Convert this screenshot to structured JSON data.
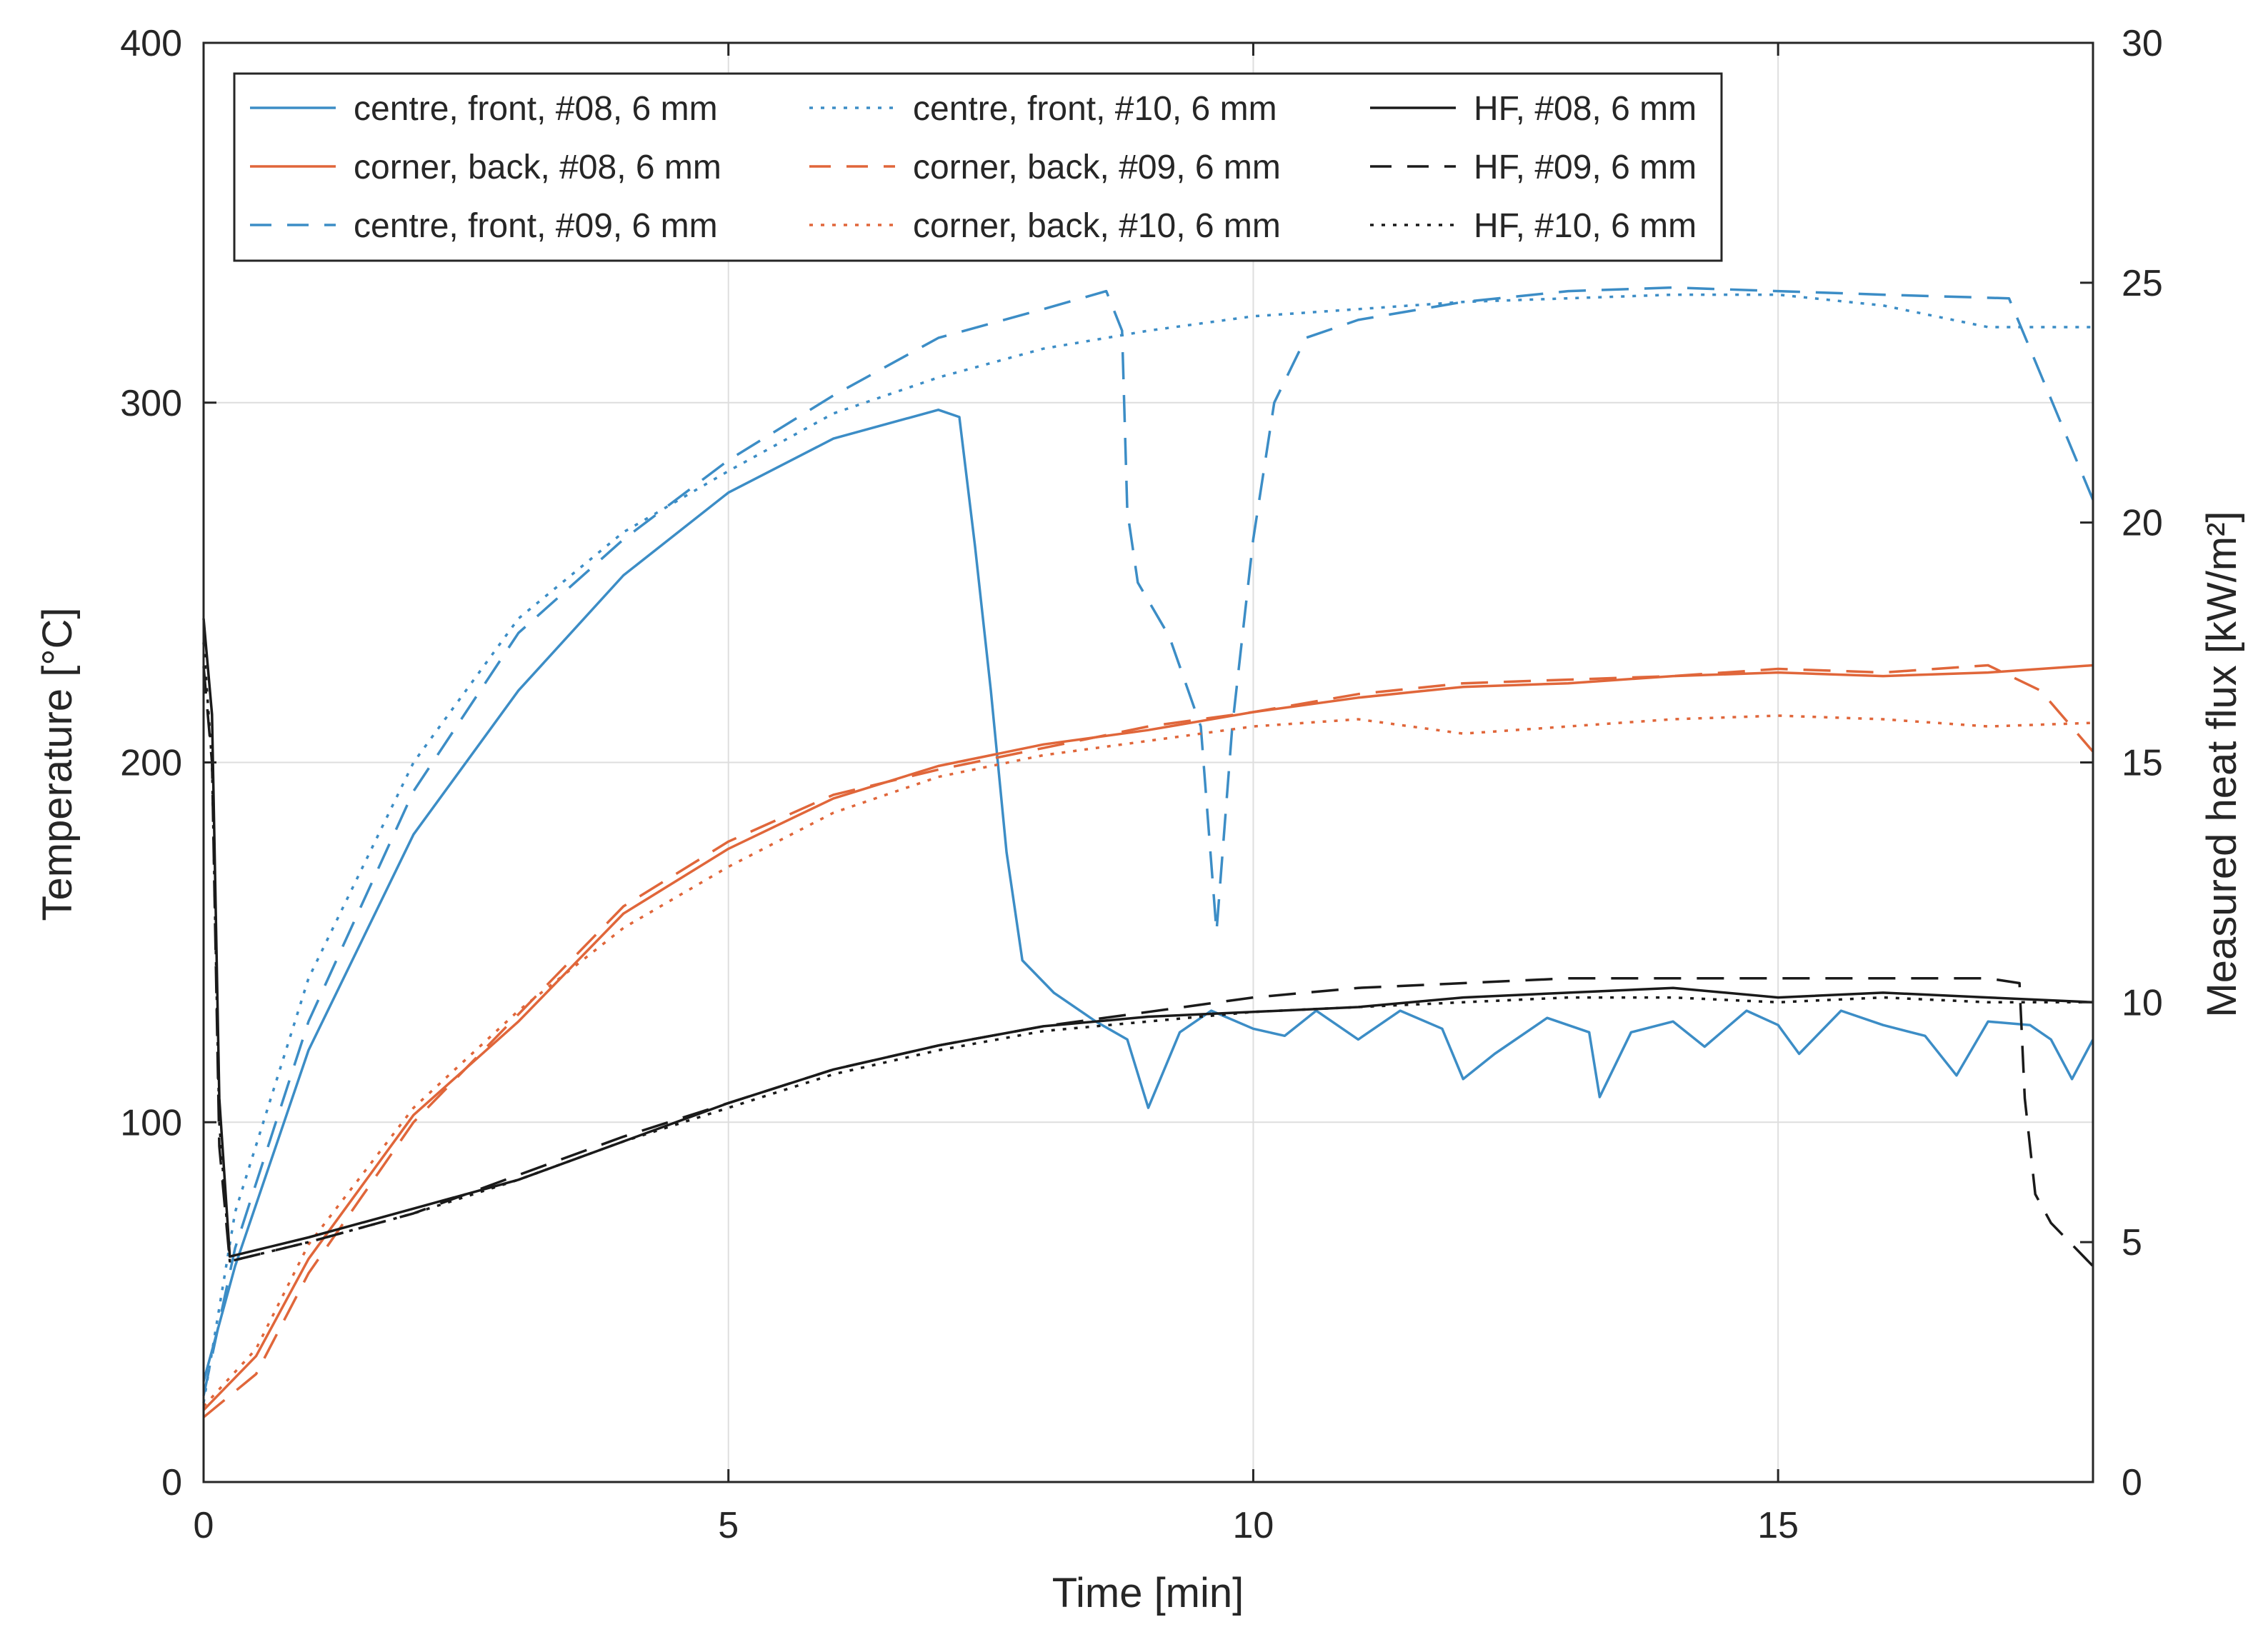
{
  "chart_data": {
    "type": "line",
    "title": "",
    "xlabel": "Time [min]",
    "ylabel_left": "Temperature [°C]",
    "ylabel_right": "Measured heat flux [kW/m²]",
    "xlim": [
      0,
      18
    ],
    "ylim_left": [
      0,
      400
    ],
    "ylim_right": [
      0,
      30
    ],
    "grid": true,
    "legend_position": "top-left (3 columns)",
    "xticks": [
      0,
      5,
      10,
      15
    ],
    "yticks_left": [
      0,
      100,
      200,
      300,
      400
    ],
    "yticks_right": [
      0,
      5,
      10,
      15,
      20,
      25,
      30
    ],
    "colors": {
      "blue": "#3c8dc6",
      "orange": "#e0663a",
      "black": "#1a1a1a",
      "grid": "#dedede",
      "axis": "#262626"
    },
    "series": [
      {
        "name": "centre, front, #08, 6 mm",
        "axis": "left",
        "color": "blue",
        "dash": "solid",
        "points": [
          [
            0,
            28
          ],
          [
            0.3,
            60
          ],
          [
            1,
            120
          ],
          [
            2,
            180
          ],
          [
            3,
            220
          ],
          [
            4,
            252
          ],
          [
            5,
            275
          ],
          [
            6,
            290
          ],
          [
            7,
            298
          ],
          [
            7.2,
            296
          ],
          [
            7.35,
            260
          ],
          [
            7.5,
            220
          ],
          [
            7.65,
            175
          ],
          [
            7.8,
            145
          ],
          [
            8.1,
            136
          ],
          [
            8.5,
            128
          ],
          [
            8.8,
            123
          ],
          [
            9,
            104
          ],
          [
            9.3,
            125
          ],
          [
            9.6,
            131
          ],
          [
            10,
            126
          ],
          [
            10.3,
            124
          ],
          [
            10.6,
            131
          ],
          [
            11,
            123
          ],
          [
            11.4,
            131
          ],
          [
            11.8,
            126
          ],
          [
            12,
            112
          ],
          [
            12.3,
            119
          ],
          [
            12.8,
            129
          ],
          [
            13.2,
            125
          ],
          [
            13.3,
            107
          ],
          [
            13.6,
            125
          ],
          [
            14,
            128
          ],
          [
            14.3,
            121
          ],
          [
            14.7,
            131
          ],
          [
            15,
            127
          ],
          [
            15.2,
            119
          ],
          [
            15.6,
            131
          ],
          [
            16,
            127
          ],
          [
            16.4,
            124
          ],
          [
            16.7,
            113
          ],
          [
            17,
            128
          ],
          [
            17.4,
            127
          ],
          [
            17.6,
            123
          ],
          [
            17.8,
            112
          ],
          [
            18,
            123
          ]
        ]
      },
      {
        "name": "corner, back, #08, 6 mm",
        "axis": "left",
        "color": "orange",
        "dash": "solid",
        "points": [
          [
            0,
            20
          ],
          [
            0.5,
            35
          ],
          [
            1,
            62
          ],
          [
            2,
            102
          ],
          [
            3,
            128
          ],
          [
            4,
            158
          ],
          [
            5,
            176
          ],
          [
            6,
            190
          ],
          [
            7,
            199
          ],
          [
            8,
            205
          ],
          [
            9,
            209
          ],
          [
            10,
            214
          ],
          [
            11,
            218
          ],
          [
            12,
            221
          ],
          [
            13,
            222
          ],
          [
            14,
            224
          ],
          [
            15,
            225
          ],
          [
            16,
            224
          ],
          [
            17,
            225
          ],
          [
            18,
            227
          ]
        ]
      },
      {
        "name": "centre, front, #09, 6 mm",
        "axis": "left",
        "color": "blue",
        "dash": "dashed",
        "points": [
          [
            0,
            24
          ],
          [
            0.3,
            65
          ],
          [
            1,
            128
          ],
          [
            2,
            192
          ],
          [
            3,
            236
          ],
          [
            4,
            262
          ],
          [
            5,
            284
          ],
          [
            6,
            302
          ],
          [
            7,
            318
          ],
          [
            8,
            326
          ],
          [
            8.6,
            331
          ],
          [
            8.75,
            320
          ],
          [
            8.8,
            270
          ],
          [
            8.9,
            250
          ],
          [
            9.2,
            235
          ],
          [
            9.5,
            210
          ],
          [
            9.65,
            153
          ],
          [
            9.8,
            210
          ],
          [
            10,
            262
          ],
          [
            10.2,
            300
          ],
          [
            10.5,
            318
          ],
          [
            11,
            323
          ],
          [
            12,
            328
          ],
          [
            13,
            331
          ],
          [
            14,
            332
          ],
          [
            15,
            331
          ],
          [
            16,
            330
          ],
          [
            17.2,
            329
          ],
          [
            17.4,
            315
          ],
          [
            18,
            273
          ]
        ]
      },
      {
        "name": "centre, front, #10, 6 mm",
        "axis": "left",
        "color": "blue",
        "dash": "dotted",
        "points": [
          [
            0,
            22
          ],
          [
            0.3,
            75
          ],
          [
            1,
            140
          ],
          [
            2,
            200
          ],
          [
            3,
            240
          ],
          [
            4,
            264
          ],
          [
            5,
            281
          ],
          [
            6,
            297
          ],
          [
            7,
            307
          ],
          [
            8,
            315
          ],
          [
            9,
            320
          ],
          [
            10,
            324
          ],
          [
            11,
            326
          ],
          [
            12,
            328
          ],
          [
            13,
            329
          ],
          [
            14,
            330
          ],
          [
            15,
            330
          ],
          [
            16,
            327
          ],
          [
            17,
            321
          ],
          [
            18,
            321
          ]
        ]
      },
      {
        "name": "corner, back, #09, 6 mm",
        "axis": "left",
        "color": "orange",
        "dash": "dashed",
        "points": [
          [
            0,
            18
          ],
          [
            0.5,
            30
          ],
          [
            1,
            58
          ],
          [
            2,
            100
          ],
          [
            3,
            130
          ],
          [
            4,
            160
          ],
          [
            5,
            178
          ],
          [
            6,
            191
          ],
          [
            7,
            198
          ],
          [
            8,
            204
          ],
          [
            9,
            210
          ],
          [
            10,
            214
          ],
          [
            11,
            219
          ],
          [
            12,
            222
          ],
          [
            13,
            223
          ],
          [
            14,
            224
          ],
          [
            15,
            226
          ],
          [
            16,
            225
          ],
          [
            17,
            227
          ],
          [
            17.5,
            220
          ],
          [
            18,
            203
          ]
        ]
      },
      {
        "name": "corner, back, #10, 6 mm",
        "axis": "left",
        "color": "orange",
        "dash": "dotted",
        "points": [
          [
            0,
            21
          ],
          [
            0.5,
            37
          ],
          [
            1,
            66
          ],
          [
            2,
            104
          ],
          [
            3,
            131
          ],
          [
            4,
            154
          ],
          [
            5,
            171
          ],
          [
            6,
            186
          ],
          [
            7,
            196
          ],
          [
            8,
            202
          ],
          [
            9,
            206
          ],
          [
            10,
            210
          ],
          [
            11,
            212
          ],
          [
            12,
            208
          ],
          [
            13,
            210
          ],
          [
            14,
            212
          ],
          [
            15,
            213
          ],
          [
            16,
            212
          ],
          [
            17,
            210
          ],
          [
            18,
            211
          ]
        ]
      },
      {
        "name": "HF, #08, 6 mm",
        "axis": "right",
        "color": "black",
        "dash": "solid",
        "points": [
          [
            0,
            18
          ],
          [
            0.08,
            16
          ],
          [
            0.15,
            8
          ],
          [
            0.25,
            4.7
          ],
          [
            1,
            5.1
          ],
          [
            2,
            5.7
          ],
          [
            3,
            6.3
          ],
          [
            4,
            7.1
          ],
          [
            5,
            7.9
          ],
          [
            6,
            8.6
          ],
          [
            7,
            9.1
          ],
          [
            8,
            9.5
          ],
          [
            9,
            9.7
          ],
          [
            10,
            9.8
          ],
          [
            11,
            9.9
          ],
          [
            12,
            10.1
          ],
          [
            13,
            10.2
          ],
          [
            14,
            10.3
          ],
          [
            15,
            10.1
          ],
          [
            16,
            10.2
          ],
          [
            17,
            10.1
          ],
          [
            18,
            10.0
          ]
        ]
      },
      {
        "name": "HF, #09, 6 mm",
        "axis": "right",
        "color": "black",
        "dash": "dashed",
        "points": [
          [
            0,
            17
          ],
          [
            0.08,
            15
          ],
          [
            0.15,
            7
          ],
          [
            0.25,
            4.6
          ],
          [
            1,
            5.0
          ],
          [
            2,
            5.6
          ],
          [
            3,
            6.4
          ],
          [
            4,
            7.2
          ],
          [
            5,
            7.9
          ],
          [
            6,
            8.6
          ],
          [
            7,
            9.1
          ],
          [
            8,
            9.5
          ],
          [
            9,
            9.8
          ],
          [
            10,
            10.1
          ],
          [
            11,
            10.3
          ],
          [
            12,
            10.4
          ],
          [
            13,
            10.5
          ],
          [
            14,
            10.5
          ],
          [
            15,
            10.5
          ],
          [
            16,
            10.5
          ],
          [
            17,
            10.5
          ],
          [
            17.3,
            10.4
          ],
          [
            17.35,
            8
          ],
          [
            17.45,
            6
          ],
          [
            17.6,
            5.4
          ],
          [
            18,
            4.5
          ]
        ]
      },
      {
        "name": "HF, #10, 6 mm",
        "axis": "right",
        "color": "black",
        "dash": "dotted",
        "points": [
          [
            0,
            17.5
          ],
          [
            0.08,
            15
          ],
          [
            0.15,
            7.5
          ],
          [
            0.25,
            4.6
          ],
          [
            1,
            5.0
          ],
          [
            2,
            5.6
          ],
          [
            3,
            6.3
          ],
          [
            4,
            7.1
          ],
          [
            5,
            7.8
          ],
          [
            6,
            8.5
          ],
          [
            7,
            9.0
          ],
          [
            8,
            9.4
          ],
          [
            9,
            9.6
          ],
          [
            10,
            9.8
          ],
          [
            11,
            9.9
          ],
          [
            12,
            10.0
          ],
          [
            13,
            10.1
          ],
          [
            14,
            10.1
          ],
          [
            15,
            10.0
          ],
          [
            16,
            10.1
          ],
          [
            17,
            10.0
          ],
          [
            18,
            10.0
          ]
        ]
      }
    ]
  }
}
